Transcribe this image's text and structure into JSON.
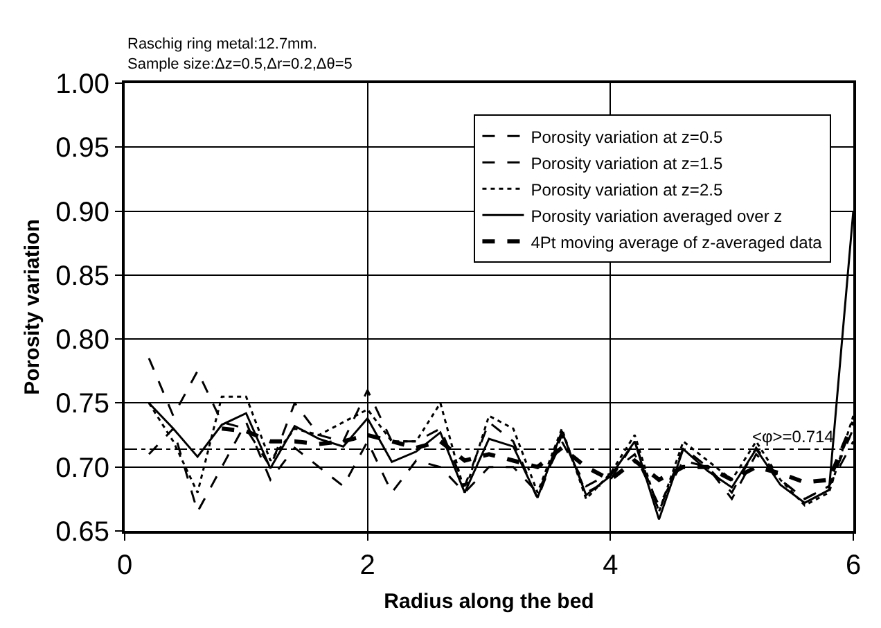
{
  "chart_data": {
    "type": "line",
    "title": "Raschig ring metal:12.7mm.",
    "subtitle": "Sample size:Δz=0.5,Δr=0.2,Δθ=5",
    "xlabel": "Radius along the bed",
    "ylabel": "Porosity variation",
    "xlim": [
      0,
      6
    ],
    "xticks": [
      0,
      2,
      4,
      6
    ],
    "ylim": [
      0.65,
      1.0
    ],
    "yticks": [
      {
        "value": 0.65,
        "label": "0.65"
      },
      {
        "value": 0.7,
        "label": "0.70"
      },
      {
        "value": 0.75,
        "label": "0.75"
      },
      {
        "value": 0.8,
        "label": "0.80"
      },
      {
        "value": 0.85,
        "label": "0.85"
      },
      {
        "value": 0.9,
        "label": "0.90"
      },
      {
        "value": 0.95,
        "label": "0.95"
      },
      {
        "value": 1.0,
        "label": "1.00"
      }
    ],
    "grid": true,
    "legend": "top right",
    "marker": "none",
    "x": [
      0.2,
      0.4,
      0.6,
      0.8,
      1.0,
      1.2,
      1.4,
      1.6,
      1.8,
      2.0,
      2.2,
      2.4,
      2.6,
      2.8,
      3.0,
      3.2,
      3.4,
      3.6,
      3.8,
      4.0,
      4.2,
      4.4,
      4.6,
      4.8,
      5.0,
      5.2,
      5.4,
      5.6,
      5.8,
      6.0
    ],
    "series": [
      {
        "name": "Porosity variation at z=0.5",
        "color": "#000000",
        "line_style": "dashed",
        "values": [
          0.71,
          0.73,
          0.665,
          0.7,
          0.735,
          0.69,
          0.715,
          0.7,
          0.685,
          0.72,
          0.68,
          0.705,
          0.7,
          0.68,
          0.7,
          0.7,
          0.68,
          0.72,
          0.685,
          0.695,
          0.71,
          0.67,
          0.705,
          0.7,
          0.675,
          0.71,
          0.69,
          0.675,
          0.685,
          0.72
        ]
      },
      {
        "name": "Porosity variation at z=1.5",
        "color": "#000000",
        "line_style": "dashed",
        "values": [
          0.785,
          0.74,
          0.775,
          0.735,
          0.73,
          0.7,
          0.75,
          0.725,
          0.72,
          0.76,
          0.72,
          0.72,
          0.73,
          0.685,
          0.735,
          0.72,
          0.675,
          0.725,
          0.68,
          0.69,
          0.72,
          0.665,
          0.715,
          0.7,
          0.68,
          0.715,
          0.69,
          0.675,
          0.685,
          0.73
        ]
      },
      {
        "name": "Porosity variation at z=2.5",
        "color": "#000000",
        "line_style": "dotted",
        "values": [
          0.75,
          0.72,
          0.68,
          0.755,
          0.755,
          0.705,
          0.73,
          0.725,
          0.735,
          0.745,
          0.72,
          0.72,
          0.75,
          0.68,
          0.74,
          0.73,
          0.68,
          0.73,
          0.675,
          0.695,
          0.725,
          0.665,
          0.72,
          0.705,
          0.69,
          0.72,
          0.69,
          0.67,
          0.68,
          0.74
        ]
      },
      {
        "name": "Porosity variation averaged over z",
        "color": "#000000",
        "line_style": "solid",
        "values": [
          0.75,
          0.73,
          0.708,
          0.733,
          0.742,
          0.699,
          0.732,
          0.722,
          0.716,
          0.738,
          0.704,
          0.712,
          0.727,
          0.68,
          0.722,
          0.716,
          0.676,
          0.728,
          0.678,
          0.693,
          0.72,
          0.659,
          0.714,
          0.697,
          0.684,
          0.714,
          0.686,
          0.672,
          0.682,
          0.9
        ]
      },
      {
        "name": "4Pt moving average of z-averaged data",
        "color": "#000000",
        "line_style": "dashed",
        "values": [
          null,
          null,
          null,
          0.73,
          0.728,
          0.72,
          0.72,
          0.718,
          0.72,
          0.725,
          0.72,
          0.715,
          0.72,
          0.705,
          0.71,
          0.705,
          0.7,
          0.715,
          0.7,
          0.69,
          0.705,
          0.69,
          0.7,
          0.7,
          0.69,
          0.7,
          0.695,
          0.688,
          0.69,
          0.735
        ]
      }
    ],
    "ref_lines": [
      {
        "axis": "y",
        "value": 0.714,
        "label": "<φ>=0.714",
        "color": "#000000",
        "line_style": "dashdot"
      }
    ]
  }
}
